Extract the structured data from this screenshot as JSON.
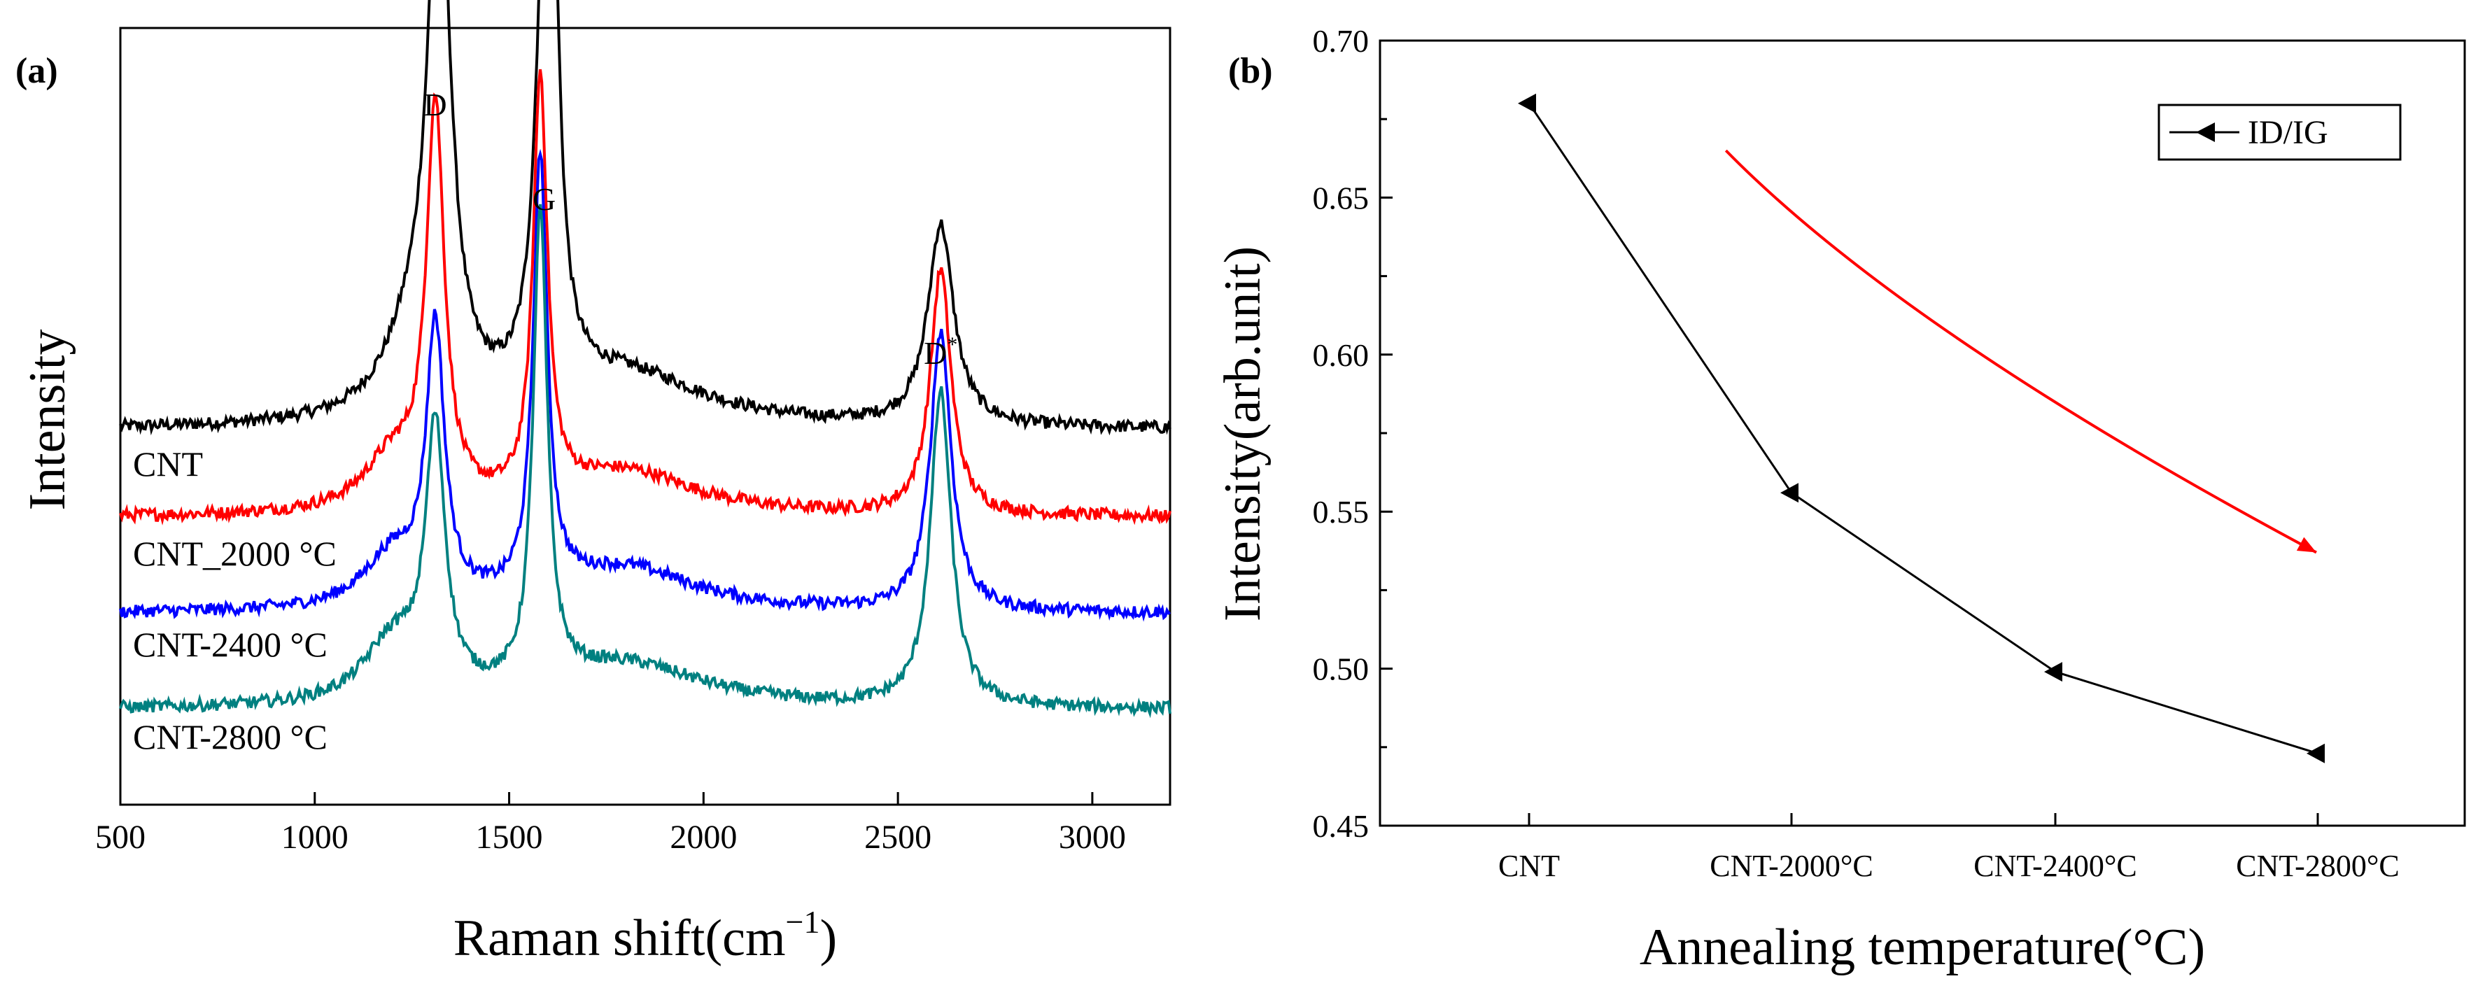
{
  "chart_data": [
    {
      "type": "line",
      "panel_label": "(a)",
      "xlabel": "Raman shift(cm",
      "xlabel_sup": "−1",
      "xlabel_suffix": ")",
      "ylabel": "Intensity",
      "xlim": [
        500,
        3200
      ],
      "xticks": [
        "500",
        "1000",
        "1500",
        "2000",
        "2500",
        "3000"
      ],
      "yticks_shown": false,
      "peak_labels": [
        {
          "text": "D",
          "x": 1310
        },
        {
          "text": "G",
          "x": 1590
        },
        {
          "text": "D",
          "sup": "*",
          "x": 2610
        }
      ],
      "series": [
        {
          "name": "CNT",
          "color": "#000000",
          "baseline": 1.0,
          "peaks": [
            [
              1320,
              6.2,
              35
            ],
            [
              1590,
              4.0,
              28
            ],
            [
              1610,
              4.2,
              22
            ],
            [
              2610,
              2.3,
              40
            ],
            [
              1250,
              0.8,
              90
            ],
            [
              1800,
              0.6,
              250
            ]
          ]
        },
        {
          "name": "CNT_2000 °C",
          "color": "#ff0000",
          "baseline": 0.0,
          "peaks": [
            [
              1310,
              4.5,
              28
            ],
            [
              1580,
              4.8,
              22
            ],
            [
              2610,
              2.8,
              32
            ],
            [
              1200,
              0.6,
              90
            ],
            [
              1800,
              0.5,
              220
            ]
          ]
        },
        {
          "name": "CNT-2400 °C",
          "color": "#0000ff",
          "baseline": -1.1,
          "peaks": [
            [
              1310,
              3.1,
              28
            ],
            [
              1580,
              5.0,
              22
            ],
            [
              2610,
              3.2,
              32
            ],
            [
              1200,
              0.6,
              90
            ],
            [
              1800,
              0.5,
              220
            ]
          ]
        },
        {
          "name": "CNT-2800 °C",
          "color": "#008080",
          "baseline": -2.2,
          "peaks": [
            [
              1310,
              3.0,
              30
            ],
            [
              1580,
              5.4,
              22
            ],
            [
              2610,
              3.6,
              32
            ],
            [
              1200,
              0.7,
              90
            ],
            [
              1800,
              0.5,
              250
            ]
          ]
        }
      ]
    },
    {
      "type": "line",
      "panel_label": "(b)",
      "xlabel": "Annealing temperature(°C)",
      "ylabel": "Intensity(arb.unit)",
      "categories": [
        "CNT",
        "CNT-2000°C",
        "CNT-2400°C",
        "CNT-2800°C"
      ],
      "ylim": [
        0.45,
        0.7
      ],
      "yticks": [
        "0.45",
        "0.50",
        "0.55",
        "0.60",
        "0.65",
        "0.70"
      ],
      "series": [
        {
          "name": "ID/IG",
          "color": "#000000",
          "values": [
            0.68,
            0.556,
            0.499,
            0.473
          ]
        }
      ],
      "legend": {
        "label": "ID/IG",
        "position": "top-right"
      },
      "annotation": {
        "type": "trend-arrow",
        "color": "#ff0000",
        "from": [
          0.75,
          0.665
        ],
        "to": [
          3.0,
          0.537
        ]
      }
    }
  ]
}
